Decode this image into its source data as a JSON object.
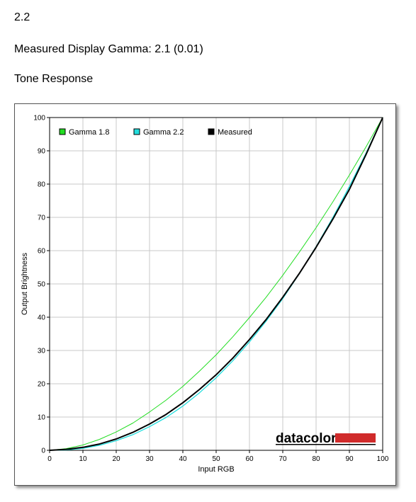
{
  "header": {
    "gamma_target": "2.2",
    "measured_gamma": "Measured Display Gamma: 2.1 (0.01)",
    "section_title": "Tone Response"
  },
  "brand": {
    "logo_text": "datacolor",
    "logo_bar_color": "#d02b2b"
  },
  "chart_data": {
    "type": "line",
    "title": "",
    "xlabel": "Input RGB",
    "ylabel": "Output Brightness",
    "xlim": [
      0,
      100
    ],
    "ylim": [
      0,
      100
    ],
    "grid": true,
    "legend": "top-left",
    "x_ticks": [
      0,
      10,
      20,
      30,
      40,
      50,
      60,
      70,
      80,
      90,
      100
    ],
    "y_ticks": [
      0,
      10,
      20,
      30,
      40,
      50,
      60,
      70,
      80,
      90,
      100
    ],
    "x": [
      0,
      5,
      10,
      15,
      20,
      25,
      30,
      35,
      40,
      45,
      50,
      55,
      60,
      65,
      70,
      75,
      80,
      85,
      90,
      95,
      100
    ],
    "series": [
      {
        "name": "Gamma 1.8",
        "color": "#22dd22",
        "values": [
          0,
          0.5,
          1.6,
          3.3,
          5.5,
          8.2,
          11.5,
          15.1,
          19.2,
          23.8,
          28.7,
          34.1,
          39.9,
          46.0,
          52.6,
          59.6,
          66.9,
          74.6,
          82.7,
          91.2,
          100
        ]
      },
      {
        "name": "Gamma 2.2",
        "color": "#22dddd",
        "values": [
          0,
          0.1,
          0.6,
          1.5,
          2.9,
          4.7,
          7.1,
          9.9,
          13.3,
          17.3,
          21.8,
          26.9,
          32.6,
          38.8,
          45.6,
          53.1,
          61.2,
          69.9,
          79.3,
          89.3,
          100
        ]
      },
      {
        "name": "Measured",
        "color": "#000000",
        "values": [
          0,
          0.3,
          0.9,
          1.9,
          3.4,
          5.4,
          7.9,
          10.8,
          14.3,
          18.3,
          22.7,
          27.7,
          33.3,
          39.3,
          46.0,
          53.2,
          61.0,
          69.4,
          78.4,
          88.9,
          100
        ]
      }
    ]
  }
}
